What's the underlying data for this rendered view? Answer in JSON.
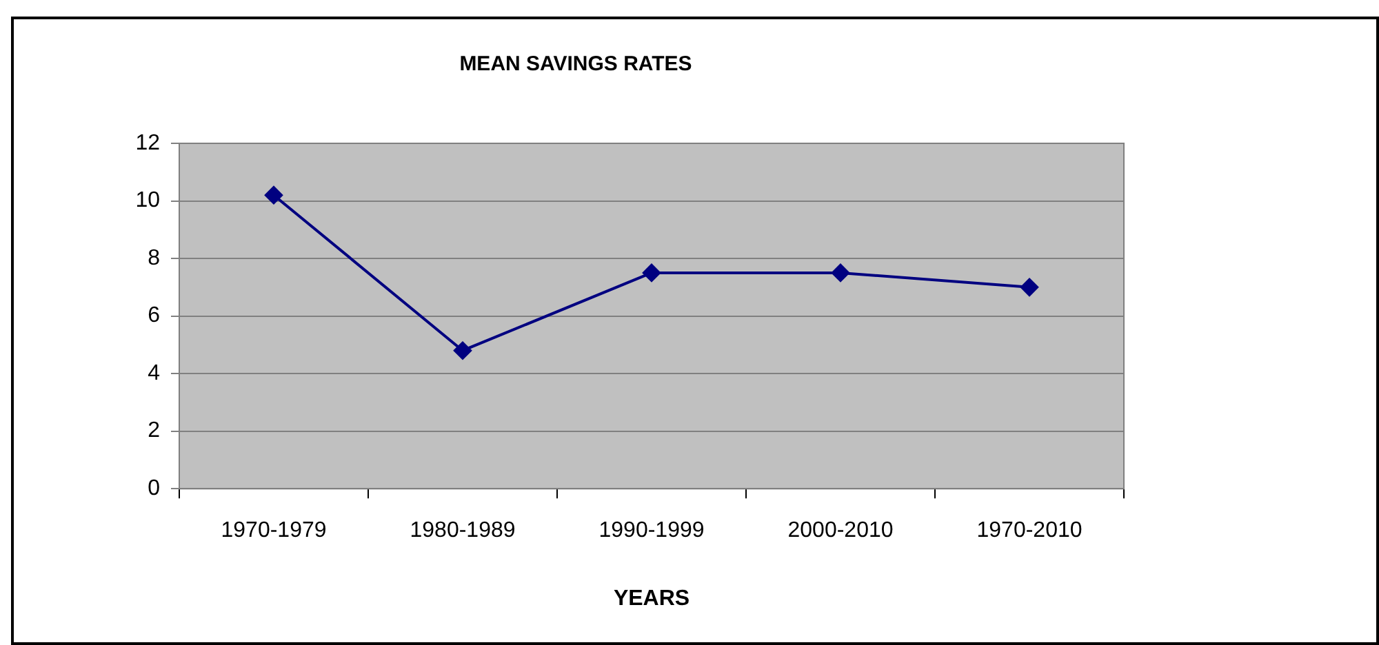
{
  "chart_data": {
    "type": "line",
    "title": "MEAN SAVINGS RATES",
    "xlabel": "YEARS",
    "categories": [
      "1970-1979",
      "1980-1989",
      "1990-1999",
      "2000-2010",
      "1970-2010"
    ],
    "series": [
      {
        "color": "#000080",
        "values": [
          10.2,
          4.8,
          7.5,
          7.5,
          7.0
        ]
      }
    ],
    "ylim": [
      0,
      12
    ],
    "yticks": [
      0,
      2,
      4,
      6,
      8,
      10,
      12
    ],
    "grid": "y",
    "legend": false,
    "marker": "diamond",
    "line_style": "solid"
  }
}
